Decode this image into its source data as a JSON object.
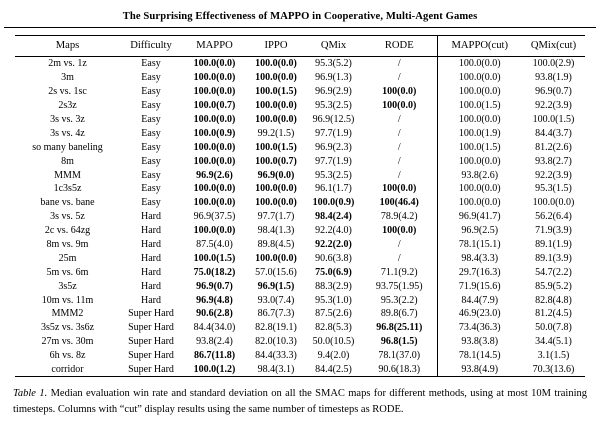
{
  "page": {
    "title": "The Surprising Effectiveness of MAPPO in Cooperative, Multi-Agent Games"
  },
  "table": {
    "columns": [
      "Maps",
      "Difficulty",
      "MAPPO",
      "IPPO",
      "QMix",
      "RODE",
      "MAPPO(cut)",
      "QMix(cut)"
    ],
    "rows": [
      {
        "map": "2m vs. 1z",
        "difficulty": "Easy",
        "values": [
          {
            "text": "100.0(0.0)",
            "bold": true
          },
          {
            "text": "100.0(0.0)",
            "bold": true
          },
          {
            "text": "95.3(5.2)",
            "bold": false
          },
          {
            "text": "/",
            "bold": false
          },
          {
            "text": "100.0(0.0)",
            "bold": false
          },
          {
            "text": "100.0(2.9)",
            "bold": false
          }
        ]
      },
      {
        "map": "3m",
        "difficulty": "Easy",
        "values": [
          {
            "text": "100.0(0.0)",
            "bold": true
          },
          {
            "text": "100.0(0.0)",
            "bold": true
          },
          {
            "text": "96.9(1.3)",
            "bold": false
          },
          {
            "text": "/",
            "bold": false
          },
          {
            "text": "100.0(0.0)",
            "bold": false
          },
          {
            "text": "93.8(1.9)",
            "bold": false
          }
        ]
      },
      {
        "map": "2s vs. 1sc",
        "difficulty": "Easy",
        "values": [
          {
            "text": "100.0(0.0)",
            "bold": true
          },
          {
            "text": "100.0(1.5)",
            "bold": true
          },
          {
            "text": "96.9(2.9)",
            "bold": false
          },
          {
            "text": "100(0.0)",
            "bold": true
          },
          {
            "text": "100.0(0.0)",
            "bold": false
          },
          {
            "text": "96.9(0.7)",
            "bold": false
          }
        ]
      },
      {
        "map": "2s3z",
        "difficulty": "Easy",
        "values": [
          {
            "text": "100.0(0.7)",
            "bold": true
          },
          {
            "text": "100.0(0.0)",
            "bold": true
          },
          {
            "text": "95.3(2.5)",
            "bold": false
          },
          {
            "text": "100(0.0)",
            "bold": true
          },
          {
            "text": "100.0(1.5)",
            "bold": false
          },
          {
            "text": "92.2(3.9)",
            "bold": false
          }
        ]
      },
      {
        "map": "3s vs. 3z",
        "difficulty": "Easy",
        "values": [
          {
            "text": "100.0(0.0)",
            "bold": true
          },
          {
            "text": "100.0(0.0)",
            "bold": true
          },
          {
            "text": "96.9(12.5)",
            "bold": false
          },
          {
            "text": "/",
            "bold": false
          },
          {
            "text": "100.0(0.0)",
            "bold": false
          },
          {
            "text": "100.0(1.5)",
            "bold": false
          }
        ]
      },
      {
        "map": "3s vs. 4z",
        "difficulty": "Easy",
        "values": [
          {
            "text": "100.0(0.9)",
            "bold": true
          },
          {
            "text": "99.2(1.5)",
            "bold": false
          },
          {
            "text": "97.7(1.9)",
            "bold": false
          },
          {
            "text": "/",
            "bold": false
          },
          {
            "text": "100.0(1.9)",
            "bold": false
          },
          {
            "text": "84.4(3.7)",
            "bold": false
          }
        ]
      },
      {
        "map": "so many baneling",
        "difficulty": "Easy",
        "values": [
          {
            "text": "100.0(0.0)",
            "bold": true
          },
          {
            "text": "100.0(1.5)",
            "bold": true
          },
          {
            "text": "96.9(2.3)",
            "bold": false
          },
          {
            "text": "/",
            "bold": false
          },
          {
            "text": "100.0(1.5)",
            "bold": false
          },
          {
            "text": "81.2(2.6)",
            "bold": false
          }
        ]
      },
      {
        "map": "8m",
        "difficulty": "Easy",
        "values": [
          {
            "text": "100.0(0.0)",
            "bold": true
          },
          {
            "text": "100.0(0.7)",
            "bold": true
          },
          {
            "text": "97.7(1.9)",
            "bold": false
          },
          {
            "text": "/",
            "bold": false
          },
          {
            "text": "100.0(0.0)",
            "bold": false
          },
          {
            "text": "93.8(2.7)",
            "bold": false
          }
        ]
      },
      {
        "map": "MMM",
        "difficulty": "Easy",
        "values": [
          {
            "text": "96.9(2.6)",
            "bold": true
          },
          {
            "text": "96.9(0.0)",
            "bold": true
          },
          {
            "text": "95.3(2.5)",
            "bold": false
          },
          {
            "text": "/",
            "bold": false
          },
          {
            "text": "93.8(2.6)",
            "bold": false
          },
          {
            "text": "92.2(3.9)",
            "bold": false
          }
        ]
      },
      {
        "map": "1c3s5z",
        "difficulty": "Easy",
        "values": [
          {
            "text": "100.0(0.0)",
            "bold": true
          },
          {
            "text": "100.0(0.0)",
            "bold": true
          },
          {
            "text": "96.1(1.7)",
            "bold": false
          },
          {
            "text": "100(0.0)",
            "bold": true
          },
          {
            "text": "100.0(0.0)",
            "bold": false
          },
          {
            "text": "95.3(1.5)",
            "bold": false
          }
        ]
      },
      {
        "map": "bane vs. bane",
        "difficulty": "Easy",
        "values": [
          {
            "text": "100.0(0.0)",
            "bold": true
          },
          {
            "text": "100.0(0.0)",
            "bold": true
          },
          {
            "text": "100.0(0.9)",
            "bold": true
          },
          {
            "text": "100(46.4)",
            "bold": true
          },
          {
            "text": "100.0(0.0)",
            "bold": false
          },
          {
            "text": "100.0(0.0)",
            "bold": false
          }
        ]
      },
      {
        "map": "3s vs. 5z",
        "difficulty": "Hard",
        "values": [
          {
            "text": "96.9(37.5)",
            "bold": false
          },
          {
            "text": "97.7(1.7)",
            "bold": false
          },
          {
            "text": "98.4(2.4)",
            "bold": true
          },
          {
            "text": "78.9(4.2)",
            "bold": false
          },
          {
            "text": "96.9(41.7)",
            "bold": false
          },
          {
            "text": "56.2(6.4)",
            "bold": false
          }
        ]
      },
      {
        "map": "2c vs. 64zg",
        "difficulty": "Hard",
        "values": [
          {
            "text": "100.0(0.0)",
            "bold": true
          },
          {
            "text": "98.4(1.3)",
            "bold": false
          },
          {
            "text": "92.2(4.0)",
            "bold": false
          },
          {
            "text": "100(0.0)",
            "bold": true
          },
          {
            "text": "96.9(2.5)",
            "bold": false
          },
          {
            "text": "71.9(3.9)",
            "bold": false
          }
        ]
      },
      {
        "map": "8m vs. 9m",
        "difficulty": "Hard",
        "values": [
          {
            "text": "87.5(4.0)",
            "bold": false
          },
          {
            "text": "89.8(4.5)",
            "bold": false
          },
          {
            "text": "92.2(2.0)",
            "bold": true
          },
          {
            "text": "/",
            "bold": false
          },
          {
            "text": "78.1(15.1)",
            "bold": false
          },
          {
            "text": "89.1(1.9)",
            "bold": false
          }
        ]
      },
      {
        "map": "25m",
        "difficulty": "Hard",
        "values": [
          {
            "text": "100.0(1.5)",
            "bold": true
          },
          {
            "text": "100.0(0.0)",
            "bold": true
          },
          {
            "text": "90.6(3.8)",
            "bold": false
          },
          {
            "text": "/",
            "bold": false
          },
          {
            "text": "98.4(3.3)",
            "bold": false
          },
          {
            "text": "89.1(3.9)",
            "bold": false
          }
        ]
      },
      {
        "map": "5m vs. 6m",
        "difficulty": "Hard",
        "values": [
          {
            "text": "75.0(18.2)",
            "bold": true
          },
          {
            "text": "57.0(15.6)",
            "bold": false
          },
          {
            "text": "75.0(6.9)",
            "bold": true
          },
          {
            "text": "71.1(9.2)",
            "bold": false
          },
          {
            "text": "29.7(16.3)",
            "bold": false
          },
          {
            "text": "54.7(2.2)",
            "bold": false
          }
        ]
      },
      {
        "map": "3s5z",
        "difficulty": "Hard",
        "values": [
          {
            "text": "96.9(0.7)",
            "bold": true
          },
          {
            "text": "96.9(1.5)",
            "bold": true
          },
          {
            "text": "88.3(2.9)",
            "bold": false
          },
          {
            "text": "93.75(1.95)",
            "bold": false
          },
          {
            "text": "71.9(15.6)",
            "bold": false
          },
          {
            "text": "85.9(5.2)",
            "bold": false
          }
        ]
      },
      {
        "map": "10m vs. 11m",
        "difficulty": "Hard",
        "values": [
          {
            "text": "96.9(4.8)",
            "bold": true
          },
          {
            "text": "93.0(7.4)",
            "bold": false
          },
          {
            "text": "95.3(1.0)",
            "bold": false
          },
          {
            "text": "95.3(2.2)",
            "bold": false
          },
          {
            "text": "84.4(7.9)",
            "bold": false
          },
          {
            "text": "82.8(4.8)",
            "bold": false
          }
        ]
      },
      {
        "map": "MMM2",
        "difficulty": "Super Hard",
        "values": [
          {
            "text": "90.6(2.8)",
            "bold": true
          },
          {
            "text": "86.7(7.3)",
            "bold": false
          },
          {
            "text": "87.5(2.6)",
            "bold": false
          },
          {
            "text": "89.8(6.7)",
            "bold": false
          },
          {
            "text": "46.9(23.0)",
            "bold": false
          },
          {
            "text": "81.2(4.5)",
            "bold": false
          }
        ]
      },
      {
        "map": "3s5z vs. 3s6z",
        "difficulty": "Super Hard",
        "values": [
          {
            "text": "84.4(34.0)",
            "bold": false
          },
          {
            "text": "82.8(19.1)",
            "bold": false
          },
          {
            "text": "82.8(5.3)",
            "bold": false
          },
          {
            "text": "96.8(25.11)",
            "bold": true
          },
          {
            "text": "73.4(36.3)",
            "bold": false
          },
          {
            "text": "50.0(7.8)",
            "bold": false
          }
        ]
      },
      {
        "map": "27m vs. 30m",
        "difficulty": "Super Hard",
        "values": [
          {
            "text": "93.8(2.4)",
            "bold": false
          },
          {
            "text": "82.0(10.3)",
            "bold": false
          },
          {
            "text": "50.0(10.5)",
            "bold": false
          },
          {
            "text": "96.8(1.5)",
            "bold": true
          },
          {
            "text": "93.8(3.8)",
            "bold": false
          },
          {
            "text": "34.4(5.1)",
            "bold": false
          }
        ]
      },
      {
        "map": "6h vs. 8z",
        "difficulty": "Super Hard",
        "values": [
          {
            "text": "86.7(11.8)",
            "bold": true
          },
          {
            "text": "84.4(33.3)",
            "bold": false
          },
          {
            "text": "9.4(2.0)",
            "bold": false
          },
          {
            "text": "78.1(37.0)",
            "bold": false
          },
          {
            "text": "78.1(14.5)",
            "bold": false
          },
          {
            "text": "3.1(1.5)",
            "bold": false
          }
        ]
      },
      {
        "map": "corridor",
        "difficulty": "Super Hard",
        "values": [
          {
            "text": "100.0(1.2)",
            "bold": true
          },
          {
            "text": "98.4(3.1)",
            "bold": false
          },
          {
            "text": "84.4(2.5)",
            "bold": false
          },
          {
            "text": "90.6(18.3)",
            "bold": false
          },
          {
            "text": "93.8(4.9)",
            "bold": false
          },
          {
            "text": "70.3(13.6)",
            "bold": false
          }
        ]
      }
    ]
  },
  "caption": {
    "label": "Table 1.",
    "text": "Median evaluation win rate and standard deviation on all the SMAC maps for different methods, using at most 10M training timesteps. Columns with “cut” display results using the same number of timesteps as RODE."
  }
}
